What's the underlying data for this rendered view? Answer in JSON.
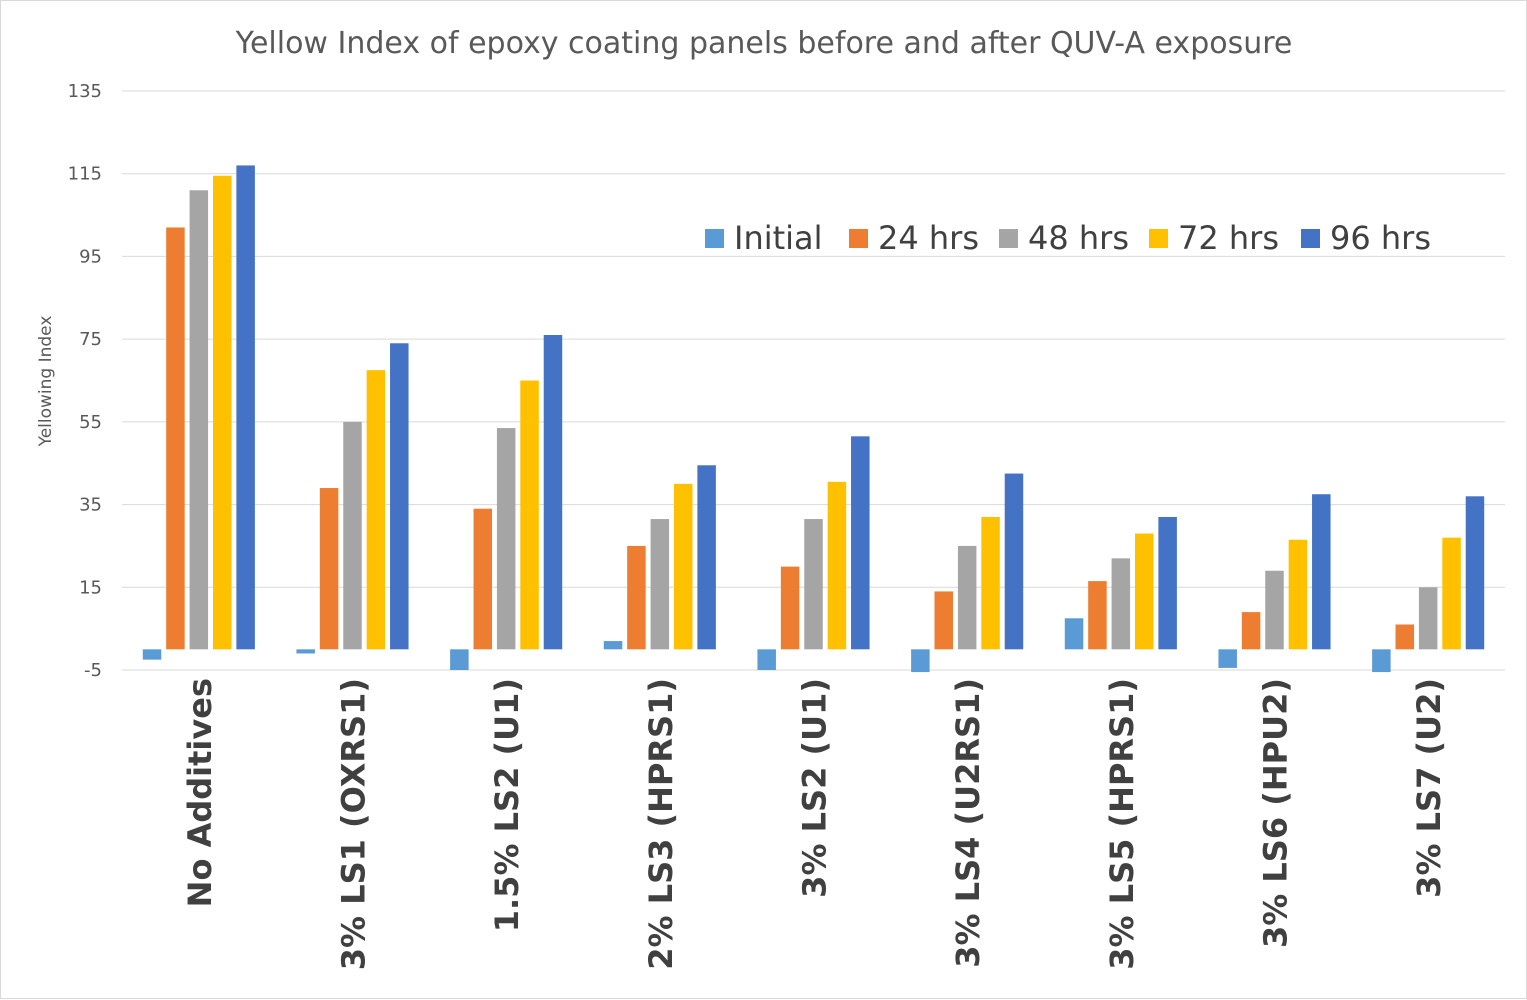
{
  "chart_data": {
    "type": "bar",
    "title": "Yellow Index of epoxy coating panels before and after QUV-A exposure",
    "xlabel": "",
    "ylabel": "Yellowing Index",
    "ylim": [
      -5,
      135
    ],
    "yticks": [
      -5,
      15,
      35,
      55,
      75,
      95,
      115,
      135
    ],
    "grid": true,
    "legend_position": "top-right",
    "categories": [
      "No Additives",
      "3% LS1 (OXRS1)",
      "1.5% LS2 (U1)",
      "2% LS3 (HPRS1)",
      "3% LS2 (U1)",
      "3% LS4 (U2RS1)",
      "3% LS5 (HPRS1)",
      "3% LS6 (HPU2)",
      "3% LS7 (U2)"
    ],
    "series": [
      {
        "name": "Initial",
        "color": "#5b9bd5",
        "values": [
          -2.5,
          -1,
          -5,
          2,
          -5,
          -5.5,
          7.5,
          -4.5,
          -5.5
        ]
      },
      {
        "name": "24 hrs",
        "color": "#ed7d31",
        "values": [
          102,
          39,
          34,
          25,
          20,
          14,
          16.5,
          9,
          6
        ]
      },
      {
        "name": "48 hrs",
        "color": "#a5a5a5",
        "values": [
          111,
          55,
          53.5,
          31.5,
          31.5,
          25,
          22,
          19,
          15
        ]
      },
      {
        "name": "72 hrs",
        "color": "#ffc000",
        "values": [
          114.5,
          67.5,
          65,
          40,
          40.5,
          32,
          28,
          26.5,
          27
        ]
      },
      {
        "name": "96 hrs",
        "color": "#4472c4",
        "values": [
          117,
          74,
          76,
          44.5,
          51.5,
          42.5,
          32,
          37.5,
          37
        ]
      }
    ]
  }
}
